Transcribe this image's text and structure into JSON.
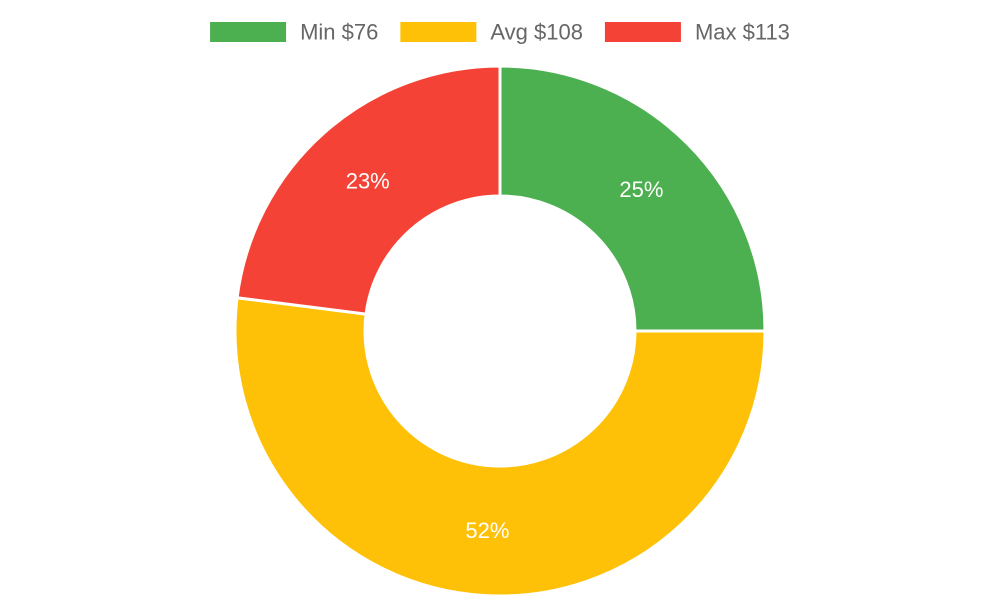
{
  "chart_data": {
    "type": "pie",
    "variant": "doughnut",
    "legend_position": "top",
    "slices": [
      {
        "label": "Min $76",
        "value": 25,
        "display": "25%",
        "color": "#4caf50"
      },
      {
        "label": "Avg $108",
        "value": 52,
        "display": "52%",
        "color": "#ffc107"
      },
      {
        "label": "Max $113",
        "value": 23,
        "display": "23%",
        "color": "#f44336"
      }
    ]
  }
}
